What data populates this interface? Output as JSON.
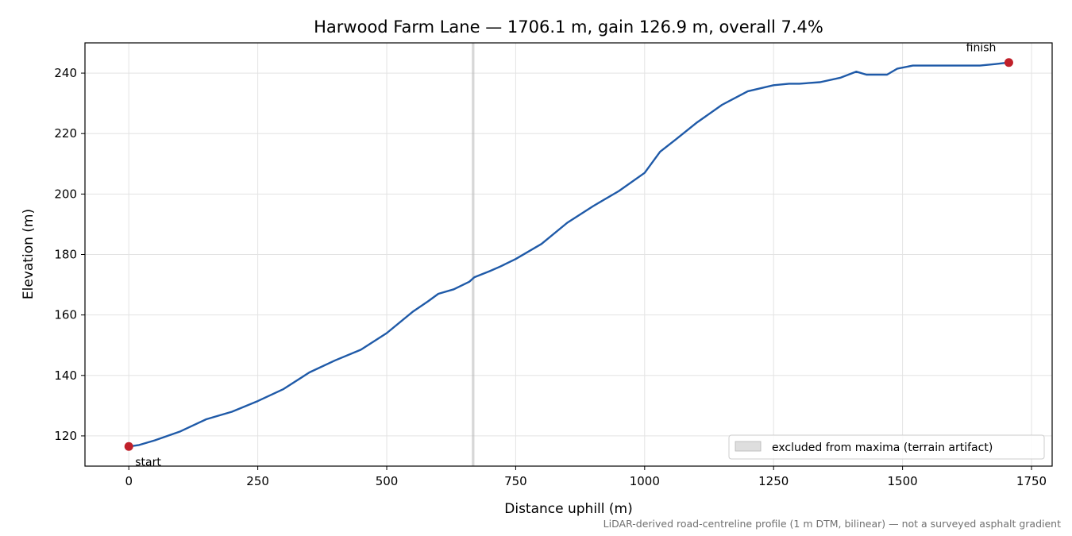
{
  "chart_data": {
    "type": "line",
    "title": "Harwood Farm Lane — 1706.1 m, gain 126.9 m, overall 7.4%",
    "xlabel": "Distance uphill (m)",
    "ylabel": "Elevation (m)",
    "xlim": [
      -85,
      1790
    ],
    "ylim": [
      110,
      250
    ],
    "xticks": [
      0,
      250,
      500,
      750,
      1000,
      1250,
      1500,
      1750
    ],
    "yticks": [
      120,
      140,
      160,
      180,
      200,
      220,
      240
    ],
    "grid": true,
    "legend": {
      "placement": "lower-right",
      "entries": [
        "excluded from maxima (terrain artifact)"
      ]
    },
    "excluded_band": {
      "x": [
        665,
        670
      ],
      "label": "excluded from maxima (terrain artifact)"
    },
    "series": [
      {
        "color": "#1f5aa8",
        "x": [
          0,
          20,
          50,
          100,
          150,
          200,
          250,
          300,
          350,
          400,
          450,
          500,
          550,
          580,
          600,
          630,
          660,
          670,
          700,
          720,
          750,
          800,
          850,
          900,
          950,
          1000,
          1030,
          1060,
          1100,
          1150,
          1200,
          1250,
          1280,
          1300,
          1340,
          1380,
          1410,
          1430,
          1470,
          1490,
          1520,
          1560,
          1600,
          1650,
          1680,
          1706
        ],
        "y": [
          116.5,
          117,
          118.5,
          121.5,
          125.5,
          128,
          131.5,
          135.5,
          141,
          145,
          148.5,
          154,
          161,
          164.5,
          167,
          168.5,
          171,
          172.5,
          174.5,
          176,
          178.5,
          183.5,
          190.5,
          196,
          201,
          207,
          214,
          218,
          223.5,
          229.5,
          234,
          236,
          236.5,
          236.5,
          237,
          238.5,
          240.5,
          239.5,
          239.5,
          241.5,
          242.5,
          242.5,
          242.5,
          242.5,
          243,
          243.5
        ]
      }
    ],
    "points": [
      {
        "label": "start",
        "x": 0,
        "y": 116.5,
        "color": "#c0202a"
      },
      {
        "label": "finish",
        "x": 1706,
        "y": 243.5,
        "color": "#c0202a"
      }
    ],
    "footnote": "LiDAR-derived road-centreline profile (1 m DTM, bilinear) — not a surveyed asphalt gradient"
  }
}
